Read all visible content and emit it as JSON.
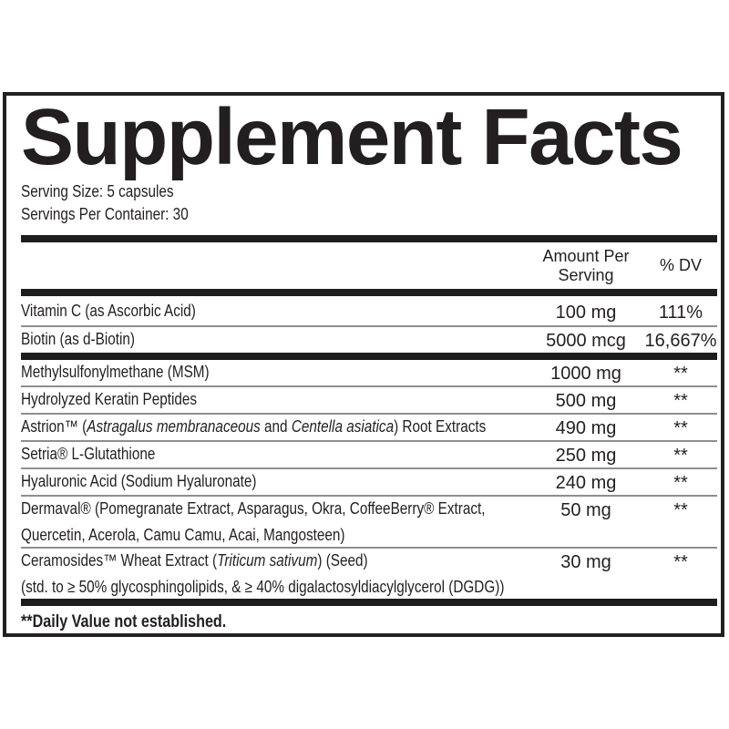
{
  "label": {
    "title": "Supplement Facts",
    "serving_size": "Serving Size: 5 capsules",
    "servings_per_container": "Servings Per Container: 30",
    "columns": {
      "amount_line1": "Amount Per",
      "amount_line2": "Serving",
      "dv": "% DV"
    },
    "rows": [
      {
        "group": 1,
        "name": [
          {
            "t": "Vitamin C (as Ascorbic Acid)"
          }
        ],
        "amount": "100 mg",
        "dv": "111%"
      },
      {
        "group": 1,
        "name": [
          {
            "t": "Biotin (as d-Biotin)"
          }
        ],
        "amount": "5000 mcg",
        "dv": "16,667%"
      },
      {
        "group": 2,
        "name": [
          {
            "t": "Methylsulfonylmethane (MSM)"
          }
        ],
        "amount": "1000 mg",
        "dv": "**"
      },
      {
        "group": 2,
        "name": [
          {
            "t": "Hydrolyzed Keratin Peptides"
          }
        ],
        "amount": "500 mg",
        "dv": "**"
      },
      {
        "group": 2,
        "name": [
          {
            "t": "Astrion™ ("
          },
          {
            "t": "Astragalus membranaceous",
            "i": true
          },
          {
            "t": " and "
          },
          {
            "t": "Centella asiatica",
            "i": true
          },
          {
            "t": ") Root Extracts"
          }
        ],
        "amount": "490 mg",
        "dv": "**"
      },
      {
        "group": 2,
        "name": [
          {
            "t": "Setria® L-Glutathione"
          }
        ],
        "amount": "250 mg",
        "dv": "**"
      },
      {
        "group": 2,
        "name": [
          {
            "t": "Hyaluronic Acid (Sodium Hyaluronate)"
          }
        ],
        "amount": "240 mg",
        "dv": "**"
      },
      {
        "group": 2,
        "name": [
          {
            "t": "Dermaval® (Pomegranate Extract, Asparagus, Okra, CoffeeBerry® Extract,"
          }
        ],
        "name2": [
          {
            "t": "Quercetin, Acerola, Camu Camu, Acai, Mangosteen)"
          }
        ],
        "amount": "50 mg",
        "dv": "**"
      },
      {
        "group": 2,
        "name": [
          {
            "t": "Ceramosides™ Wheat Extract ("
          },
          {
            "t": "Triticum sativum",
            "i": true
          },
          {
            "t": ") (Seed)"
          }
        ],
        "name2": [
          {
            "t": "(std. to ≥ 50% glycosphingolipids, & ≥ 40% digalactosyldiacylglycerol (DGDG))"
          }
        ],
        "amount": "30 mg",
        "dv": "**"
      }
    ],
    "footnote": "**Daily Value not established.",
    "colors": {
      "ink": "#231f20",
      "thick_bar": "#1f1c1d",
      "thin_separator": "#8e8e8e",
      "background": "#ffffff"
    }
  }
}
